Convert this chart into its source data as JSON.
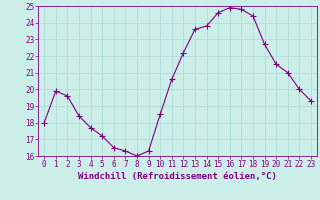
{
  "x": [
    0,
    1,
    2,
    3,
    4,
    5,
    6,
    7,
    8,
    9,
    10,
    11,
    12,
    13,
    14,
    15,
    16,
    17,
    18,
    19,
    20,
    21,
    22,
    23
  ],
  "y": [
    18.0,
    19.9,
    19.6,
    18.4,
    17.7,
    17.2,
    16.5,
    16.3,
    16.0,
    16.3,
    18.5,
    20.6,
    22.2,
    23.6,
    23.8,
    24.6,
    24.9,
    24.8,
    24.4,
    22.7,
    21.5,
    21.0,
    20.0,
    19.3
  ],
  "line_color": "#800080",
  "marker": "+",
  "marker_size": 4,
  "background_color": "#cceee8",
  "grid_color": "#b0ddd8",
  "xlabel": "Windchill (Refroidissement éolien,°C)",
  "tick_color": "#800080",
  "ylim": [
    16,
    25
  ],
  "xlim_min": -0.5,
  "xlim_max": 23.5,
  "yticks": [
    16,
    17,
    18,
    19,
    20,
    21,
    22,
    23,
    24,
    25
  ],
  "xticks": [
    0,
    1,
    2,
    3,
    4,
    5,
    6,
    7,
    8,
    9,
    10,
    11,
    12,
    13,
    14,
    15,
    16,
    17,
    18,
    19,
    20,
    21,
    22,
    23
  ],
  "xtick_labels": [
    "0",
    "1",
    "2",
    "3",
    "4",
    "5",
    "6",
    "7",
    "8",
    "9",
    "10",
    "11",
    "12",
    "13",
    "14",
    "15",
    "16",
    "17",
    "18",
    "19",
    "20",
    "21",
    "22",
    "23"
  ],
  "ytick_labels": [
    "16",
    "17",
    "18",
    "19",
    "20",
    "21",
    "22",
    "23",
    "24",
    "25"
  ],
  "font_size": 5.5,
  "xlabel_font_size": 6.5
}
